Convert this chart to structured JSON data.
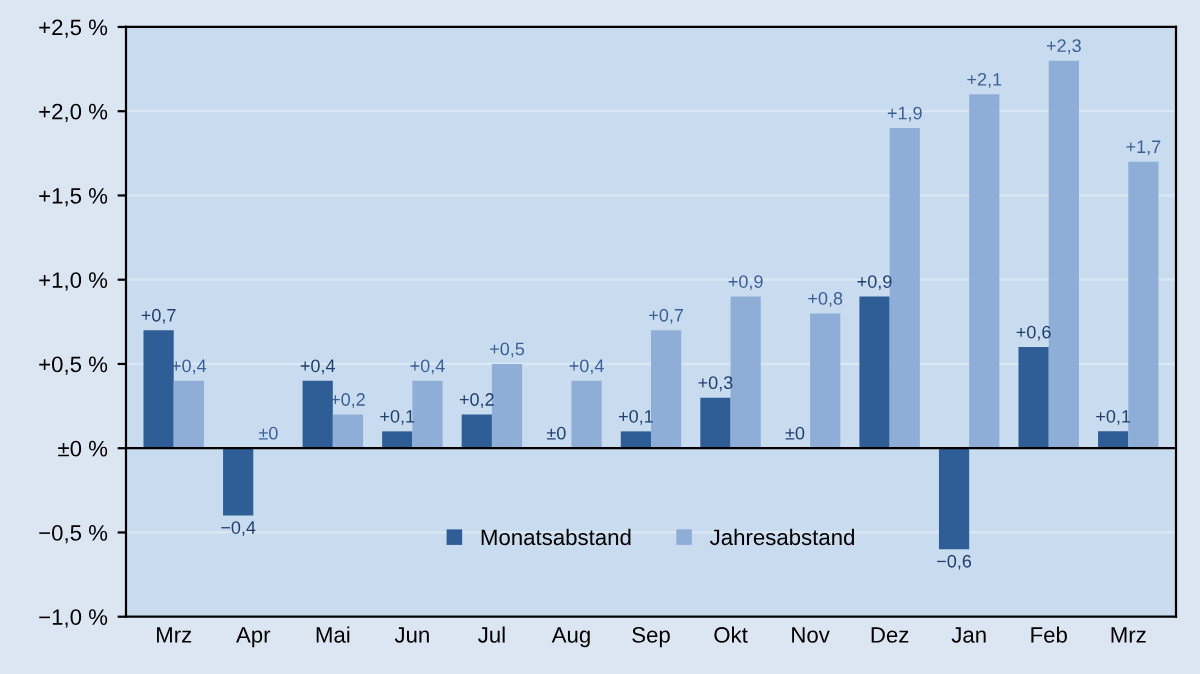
{
  "chart_data": {
    "type": "bar",
    "categories": [
      "Mrz",
      "Apr",
      "Mai",
      "Jun",
      "Jul",
      "Aug",
      "Sep",
      "Okt",
      "Nov",
      "Dez",
      "Jan",
      "Feb",
      "Mrz"
    ],
    "series": [
      {
        "name": "Monatsabstand",
        "color": "#2f5d96",
        "values": [
          0.7,
          -0.4,
          0.4,
          0.1,
          0.2,
          0,
          0.1,
          0.3,
          0,
          0.9,
          -0.6,
          0.6,
          0.1
        ],
        "value_labels": [
          "+0,7",
          "−0,4",
          "+0,4",
          "+0,1",
          "+0,2",
          "±0",
          "+0,1",
          "+0,3",
          "±0",
          "+0,9",
          "−0,6",
          "+0,6",
          "+0,1"
        ]
      },
      {
        "name": "Jahresabstand",
        "color": "#8eaed8",
        "values": [
          0.4,
          0,
          0.2,
          0.4,
          0.5,
          0.4,
          0.7,
          0.9,
          0.8,
          1.9,
          2.1,
          2.3,
          1.7
        ],
        "value_labels": [
          "+0,4",
          "±0",
          "+0,2",
          "+0,4",
          "+0,5",
          "+0,4",
          "+0,7",
          "+0,9",
          "+0,8",
          "+1,9",
          "+2,1",
          "+2,3",
          "+1,7"
        ]
      }
    ],
    "ylim": [
      -1.0,
      2.5
    ],
    "yticks": [
      {
        "value": -1.0,
        "label": "−1,0 %"
      },
      {
        "value": -0.5,
        "label": "−0,5 %"
      },
      {
        "value": 0,
        "label": "±0 %"
      },
      {
        "value": 0.5,
        "label": "+0,5 %"
      },
      {
        "value": 1.0,
        "label": "+1,0 %"
      },
      {
        "value": 1.5,
        "label": "+1,5 %"
      },
      {
        "value": 2.0,
        "label": "+2,0 %"
      },
      {
        "value": 2.5,
        "label": "+2,5 %"
      }
    ],
    "legend": "bottom",
    "grid": "y"
  }
}
